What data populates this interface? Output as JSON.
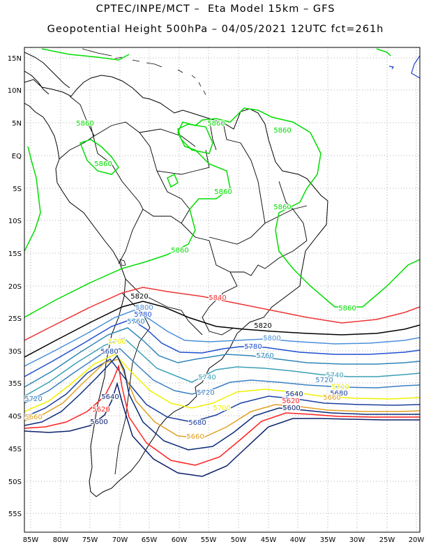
{
  "header": {
    "line1": "CPTEC/INPE/MCT –  Eta Model 15km – GFS",
    "line2": "Geopotential Height 500hPa – 04/05/2021 12UTC fct=261h"
  },
  "map": {
    "lat_labels": [
      "15N",
      "10N",
      "5N",
      "EQ",
      "5S",
      "10S",
      "15S",
      "20S",
      "25S",
      "30S",
      "35S",
      "40S",
      "45S",
      "50S",
      "55S"
    ],
    "lon_labels": [
      "85W",
      "80W",
      "75W",
      "70W",
      "65W",
      "60W",
      "55W",
      "50W",
      "45W",
      "40W",
      "35W",
      "30W",
      "25W",
      "20W"
    ],
    "contour_levels": [
      {
        "value": 5860,
        "color": "#00dd00"
      },
      {
        "value": 5840,
        "color": "#ee3333"
      },
      {
        "value": 5820,
        "color": "#000000"
      },
      {
        "value": 5800,
        "color": "#4a8fd8"
      },
      {
        "value": 5780,
        "color": "#1f4fd0"
      },
      {
        "value": 5760,
        "color": "#2f86b8"
      },
      {
        "value": 5740,
        "color": "#3a9fb5"
      },
      {
        "value": 5720,
        "color": "#3a7fc0"
      },
      {
        "value": 5700,
        "color": "#f0f000"
      },
      {
        "value": 5680,
        "color": "#1a3f9f"
      },
      {
        "value": 5660,
        "color": "#e0a020"
      },
      {
        "value": 5640,
        "color": "#0a2a7a"
      },
      {
        "value": 5620,
        "color": "#ff2020"
      },
      {
        "value": 5600,
        "color": "#0a1f6a"
      }
    ],
    "contour_labels": [
      {
        "text": "5860",
        "color": "#00dd00"
      },
      {
        "text": "5860",
        "color": "#00dd00"
      },
      {
        "text": "5860",
        "color": "#00dd00"
      },
      {
        "text": "5860",
        "color": "#00dd00"
      },
      {
        "text": "5860",
        "color": "#00dd00"
      },
      {
        "text": "5860",
        "color": "#00dd00"
      },
      {
        "text": "5860",
        "color": "#00dd00"
      },
      {
        "text": "5860",
        "color": "#00dd00"
      },
      {
        "text": "5840",
        "color": "#ee3333"
      },
      {
        "text": "5820",
        "color": "#000000"
      },
      {
        "text": "5820",
        "color": "#000000"
      },
      {
        "text": "5800",
        "color": "#4a8fd8"
      },
      {
        "text": "5800",
        "color": "#4a8fd8"
      },
      {
        "text": "5780",
        "color": "#1f4fd0"
      },
      {
        "text": "5780",
        "color": "#1f4fd0"
      },
      {
        "text": "5760",
        "color": "#2f86b8"
      },
      {
        "text": "5760",
        "color": "#2f86b8"
      },
      {
        "text": "5740",
        "color": "#3a9fb5"
      },
      {
        "text": "5740",
        "color": "#3a9fb5"
      },
      {
        "text": "5720",
        "color": "#3a7fc0"
      },
      {
        "text": "5720",
        "color": "#3a7fc0"
      },
      {
        "text": "5720",
        "color": "#3a7fc0"
      },
      {
        "text": "5700",
        "color": "#f0f000"
      },
      {
        "text": "5700",
        "color": "#f0f000"
      },
      {
        "text": "5700",
        "color": "#f0f000"
      },
      {
        "text": "5680",
        "color": "#1a3f9f"
      },
      {
        "text": "5680",
        "color": "#1a3f9f"
      },
      {
        "text": "5680",
        "color": "#1a3f9f"
      },
      {
        "text": "5660",
        "color": "#e0a020"
      },
      {
        "text": "5660",
        "color": "#e0a020"
      },
      {
        "text": "5660",
        "color": "#e0a020"
      },
      {
        "text": "5640",
        "color": "#0a2a7a"
      },
      {
        "text": "5640",
        "color": "#0a2a7a"
      },
      {
        "text": "5620",
        "color": "#ff2020"
      },
      {
        "text": "5620",
        "color": "#ff2020"
      },
      {
        "text": "5600",
        "color": "#0a1f6a"
      },
      {
        "text": "5600",
        "color": "#0a1f6a"
      }
    ]
  }
}
